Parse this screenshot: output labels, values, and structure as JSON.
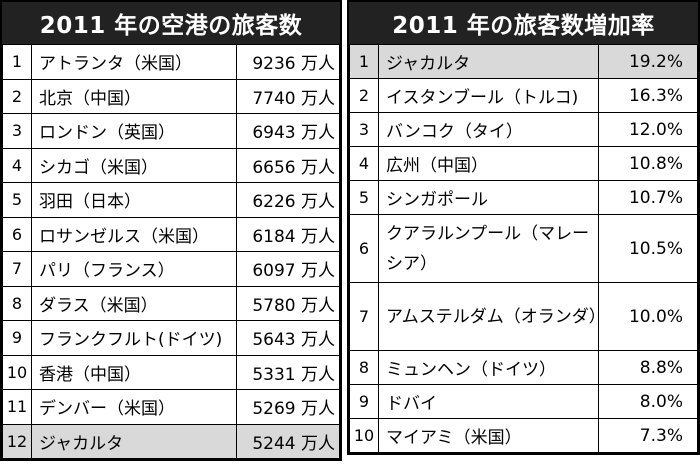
{
  "left": {
    "title": "2011 年の空港の旅客数",
    "rows": [
      {
        "rank": "1",
        "name": "アトランタ（米国）",
        "value": "9236 万人"
      },
      {
        "rank": "2",
        "name": "北京（中国）",
        "value": "7740 万人"
      },
      {
        "rank": "3",
        "name": "ロンドン（英国）",
        "value": "6943 万人"
      },
      {
        "rank": "4",
        "name": "シカゴ（米国）",
        "value": "6656 万人"
      },
      {
        "rank": "5",
        "name": "羽田（日本）",
        "value": "6226 万人"
      },
      {
        "rank": "6",
        "name": "ロサンゼルス（米国）",
        "value": "6184 万人"
      },
      {
        "rank": "7",
        "name": "パリ（フランス）",
        "value": "6097 万人"
      },
      {
        "rank": "8",
        "name": "ダラス（米国）",
        "value": "5780 万人"
      },
      {
        "rank": "9",
        "name": "フランクフルト(ドイツ)",
        "value": "5643 万人"
      },
      {
        "rank": "10",
        "name": "香港（中国）",
        "value": "5331 万人"
      },
      {
        "rank": "11",
        "name": "デンバー（米国）",
        "value": "5269 万人"
      },
      {
        "rank": "12",
        "name": "ジャカルタ",
        "value": "5244 万人"
      }
    ]
  },
  "right": {
    "title": "2011 年の旅客数増加率",
    "rows": [
      {
        "rank": "1",
        "name": "ジャカルタ",
        "value": "19.2%"
      },
      {
        "rank": "2",
        "name": "イスタンブール（トルコ)",
        "value": "16.3%"
      },
      {
        "rank": "3",
        "name": "バンコク（タイ）",
        "value": "12.0%"
      },
      {
        "rank": "4",
        "name": "広州（中国）",
        "value": "10.8%"
      },
      {
        "rank": "5",
        "name": "シンガポール",
        "value": "10.7%"
      },
      {
        "rank": "6",
        "name": "クアラルンプール（マレーシア）",
        "value": "10.5%"
      },
      {
        "rank": "7",
        "name": "アムステルダム（オランダ）",
        "value": "10.0%"
      },
      {
        "rank": "8",
        "name": "ミュンヘン（ドイツ）",
        "value": "8.8%"
      },
      {
        "rank": "9",
        "name": "ドバイ",
        "value": "8.0%"
      },
      {
        "rank": "10",
        "name": "マイアミ（米国）",
        "value": "7.3%"
      }
    ]
  },
  "highlight": {
    "color": "#d9d9d9",
    "name": "ジャカルタ"
  },
  "header_color": "#222222"
}
